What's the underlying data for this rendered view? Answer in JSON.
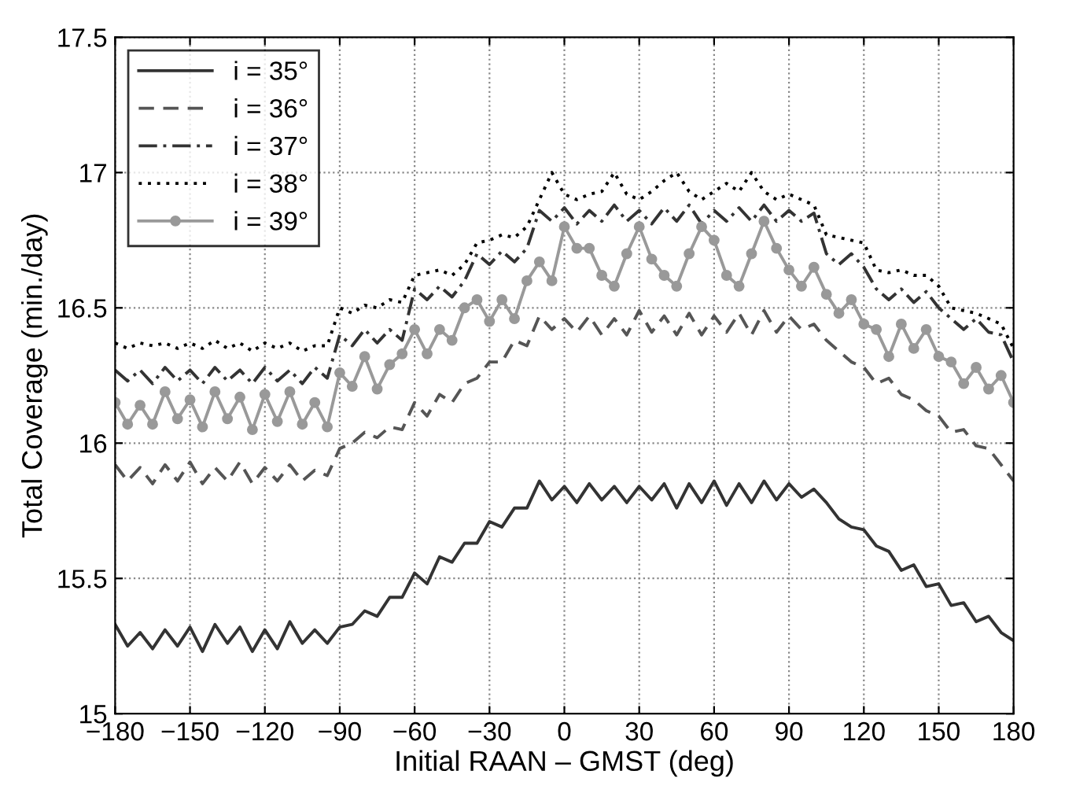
{
  "chart_data": {
    "type": "line",
    "xlabel": "Initial RAAN – GMST (deg)",
    "ylabel": "Total Coverage (min./day)",
    "x": [
      -180,
      -175,
      -170,
      -165,
      -160,
      -155,
      -150,
      -145,
      -140,
      -135,
      -130,
      -125,
      -120,
      -115,
      -110,
      -105,
      -100,
      -95,
      -90,
      -85,
      -80,
      -75,
      -70,
      -65,
      -60,
      -55,
      -50,
      -45,
      -40,
      -35,
      -30,
      -25,
      -20,
      -15,
      -10,
      -5,
      0,
      5,
      10,
      15,
      20,
      25,
      30,
      35,
      40,
      45,
      50,
      55,
      60,
      65,
      70,
      75,
      80,
      85,
      90,
      95,
      100,
      105,
      110,
      115,
      120,
      125,
      130,
      135,
      140,
      145,
      150,
      155,
      160,
      165,
      170,
      175,
      180
    ],
    "series": [
      {
        "name": "i = 35°",
        "color": "#333333",
        "line_style": "solid",
        "marker": "none",
        "values": [
          15.33,
          15.25,
          15.3,
          15.24,
          15.31,
          15.25,
          15.32,
          15.23,
          15.33,
          15.26,
          15.32,
          15.23,
          15.31,
          15.24,
          15.34,
          15.26,
          15.31,
          15.26,
          15.32,
          15.33,
          15.38,
          15.36,
          15.43,
          15.43,
          15.52,
          15.48,
          15.58,
          15.56,
          15.63,
          15.63,
          15.71,
          15.69,
          15.76,
          15.76,
          15.86,
          15.79,
          15.84,
          15.78,
          15.85,
          15.79,
          15.84,
          15.78,
          15.84,
          15.79,
          15.85,
          15.76,
          15.85,
          15.78,
          15.86,
          15.77,
          15.85,
          15.78,
          15.86,
          15.79,
          15.85,
          15.8,
          15.83,
          15.78,
          15.72,
          15.69,
          15.68,
          15.62,
          15.6,
          15.53,
          15.55,
          15.47,
          15.48,
          15.4,
          15.41,
          15.34,
          15.36,
          15.3,
          15.27
        ]
      },
      {
        "name": "i = 36°",
        "color": "#555555",
        "line_style": "dashed",
        "marker": "none",
        "values": [
          15.92,
          15.86,
          15.91,
          15.85,
          15.92,
          15.86,
          15.93,
          15.85,
          15.91,
          15.86,
          15.93,
          15.85,
          15.91,
          15.86,
          15.92,
          15.86,
          15.9,
          15.88,
          15.98,
          16.0,
          16.04,
          16.02,
          16.06,
          16.05,
          16.15,
          16.1,
          16.18,
          16.15,
          16.22,
          16.24,
          16.3,
          16.3,
          16.38,
          16.36,
          16.47,
          16.42,
          16.46,
          16.41,
          16.47,
          16.4,
          16.46,
          16.4,
          16.49,
          16.41,
          16.47,
          16.4,
          16.48,
          16.4,
          16.47,
          16.41,
          16.48,
          16.4,
          16.49,
          16.41,
          16.47,
          16.42,
          16.44,
          16.38,
          16.34,
          16.3,
          16.28,
          16.22,
          16.24,
          16.18,
          16.16,
          16.12,
          16.1,
          16.04,
          16.05,
          15.99,
          15.98,
          15.92,
          15.86
        ]
      },
      {
        "name": "i = 37°",
        "color": "#333333",
        "line_style": "dashdot",
        "marker": "none",
        "values": [
          16.27,
          16.23,
          16.27,
          16.22,
          16.28,
          16.23,
          16.27,
          16.22,
          16.28,
          16.23,
          16.27,
          16.22,
          16.28,
          16.23,
          16.27,
          16.22,
          16.28,
          16.24,
          16.4,
          16.36,
          16.42,
          16.37,
          16.42,
          16.38,
          16.57,
          16.53,
          16.58,
          16.54,
          16.6,
          16.7,
          16.66,
          16.71,
          16.67,
          16.72,
          16.86,
          16.82,
          16.87,
          16.81,
          16.86,
          16.82,
          16.88,
          16.82,
          16.86,
          16.81,
          16.87,
          16.82,
          16.88,
          16.81,
          16.86,
          16.82,
          16.87,
          16.82,
          16.88,
          16.82,
          16.86,
          16.82,
          16.85,
          16.7,
          16.66,
          16.7,
          16.65,
          16.57,
          16.53,
          16.57,
          16.52,
          16.56,
          16.5,
          16.46,
          16.42,
          16.46,
          16.41,
          16.4,
          16.3
        ]
      },
      {
        "name": "i = 38°",
        "color": "#000000",
        "line_style": "dotted",
        "marker": "none",
        "values": [
          16.37,
          16.35,
          16.37,
          16.36,
          16.37,
          16.35,
          16.37,
          16.35,
          16.38,
          16.35,
          16.37,
          16.34,
          16.37,
          16.35,
          16.37,
          16.34,
          16.36,
          16.36,
          16.5,
          16.48,
          16.51,
          16.5,
          16.53,
          16.52,
          16.62,
          16.63,
          16.64,
          16.62,
          16.66,
          16.74,
          16.75,
          16.77,
          16.76,
          16.8,
          16.9,
          17.0,
          16.92,
          16.9,
          16.92,
          16.93,
          17.0,
          16.92,
          16.9,
          16.93,
          16.97,
          17.0,
          16.93,
          16.9,
          16.93,
          16.96,
          16.93,
          17.0,
          16.93,
          16.9,
          16.92,
          16.9,
          16.88,
          16.77,
          16.76,
          16.75,
          16.74,
          16.64,
          16.63,
          16.64,
          16.62,
          16.62,
          16.58,
          16.5,
          16.49,
          16.48,
          16.46,
          16.44,
          16.35
        ]
      },
      {
        "name": "i = 39°",
        "color": "#999999",
        "line_style": "solid",
        "marker": "circle",
        "values": [
          16.15,
          16.07,
          16.14,
          16.07,
          16.19,
          16.09,
          16.16,
          16.06,
          16.19,
          16.09,
          16.17,
          16.05,
          16.18,
          16.08,
          16.19,
          16.07,
          16.15,
          16.06,
          16.26,
          16.21,
          16.32,
          16.2,
          16.29,
          16.33,
          16.42,
          16.33,
          16.42,
          16.38,
          16.5,
          16.53,
          16.45,
          16.53,
          16.46,
          16.6,
          16.67,
          16.6,
          16.8,
          16.72,
          16.72,
          16.62,
          16.58,
          16.7,
          16.8,
          16.68,
          16.62,
          16.58,
          16.7,
          16.8,
          16.75,
          16.62,
          16.58,
          16.7,
          16.82,
          16.72,
          16.64,
          16.58,
          16.65,
          16.55,
          16.48,
          16.53,
          16.44,
          16.42,
          16.32,
          16.44,
          16.35,
          16.42,
          16.32,
          16.3,
          16.22,
          16.28,
          16.2,
          16.25,
          16.15
        ]
      }
    ],
    "xlim": [
      -180,
      180
    ],
    "xticks": [
      {
        "value": -180,
        "label": "−180"
      },
      {
        "value": -150,
        "label": "−150"
      },
      {
        "value": -120,
        "label": "−120"
      },
      {
        "value": -90,
        "label": "−90"
      },
      {
        "value": -60,
        "label": "−60"
      },
      {
        "value": -30,
        "label": "−30"
      },
      0,
      30,
      60,
      90,
      120,
      150,
      180
    ],
    "ylim": [
      15,
      17.5
    ],
    "yticks": [
      15,
      15.5,
      16,
      16.5,
      17,
      17.5
    ],
    "grid": true,
    "legend": "top left"
  }
}
